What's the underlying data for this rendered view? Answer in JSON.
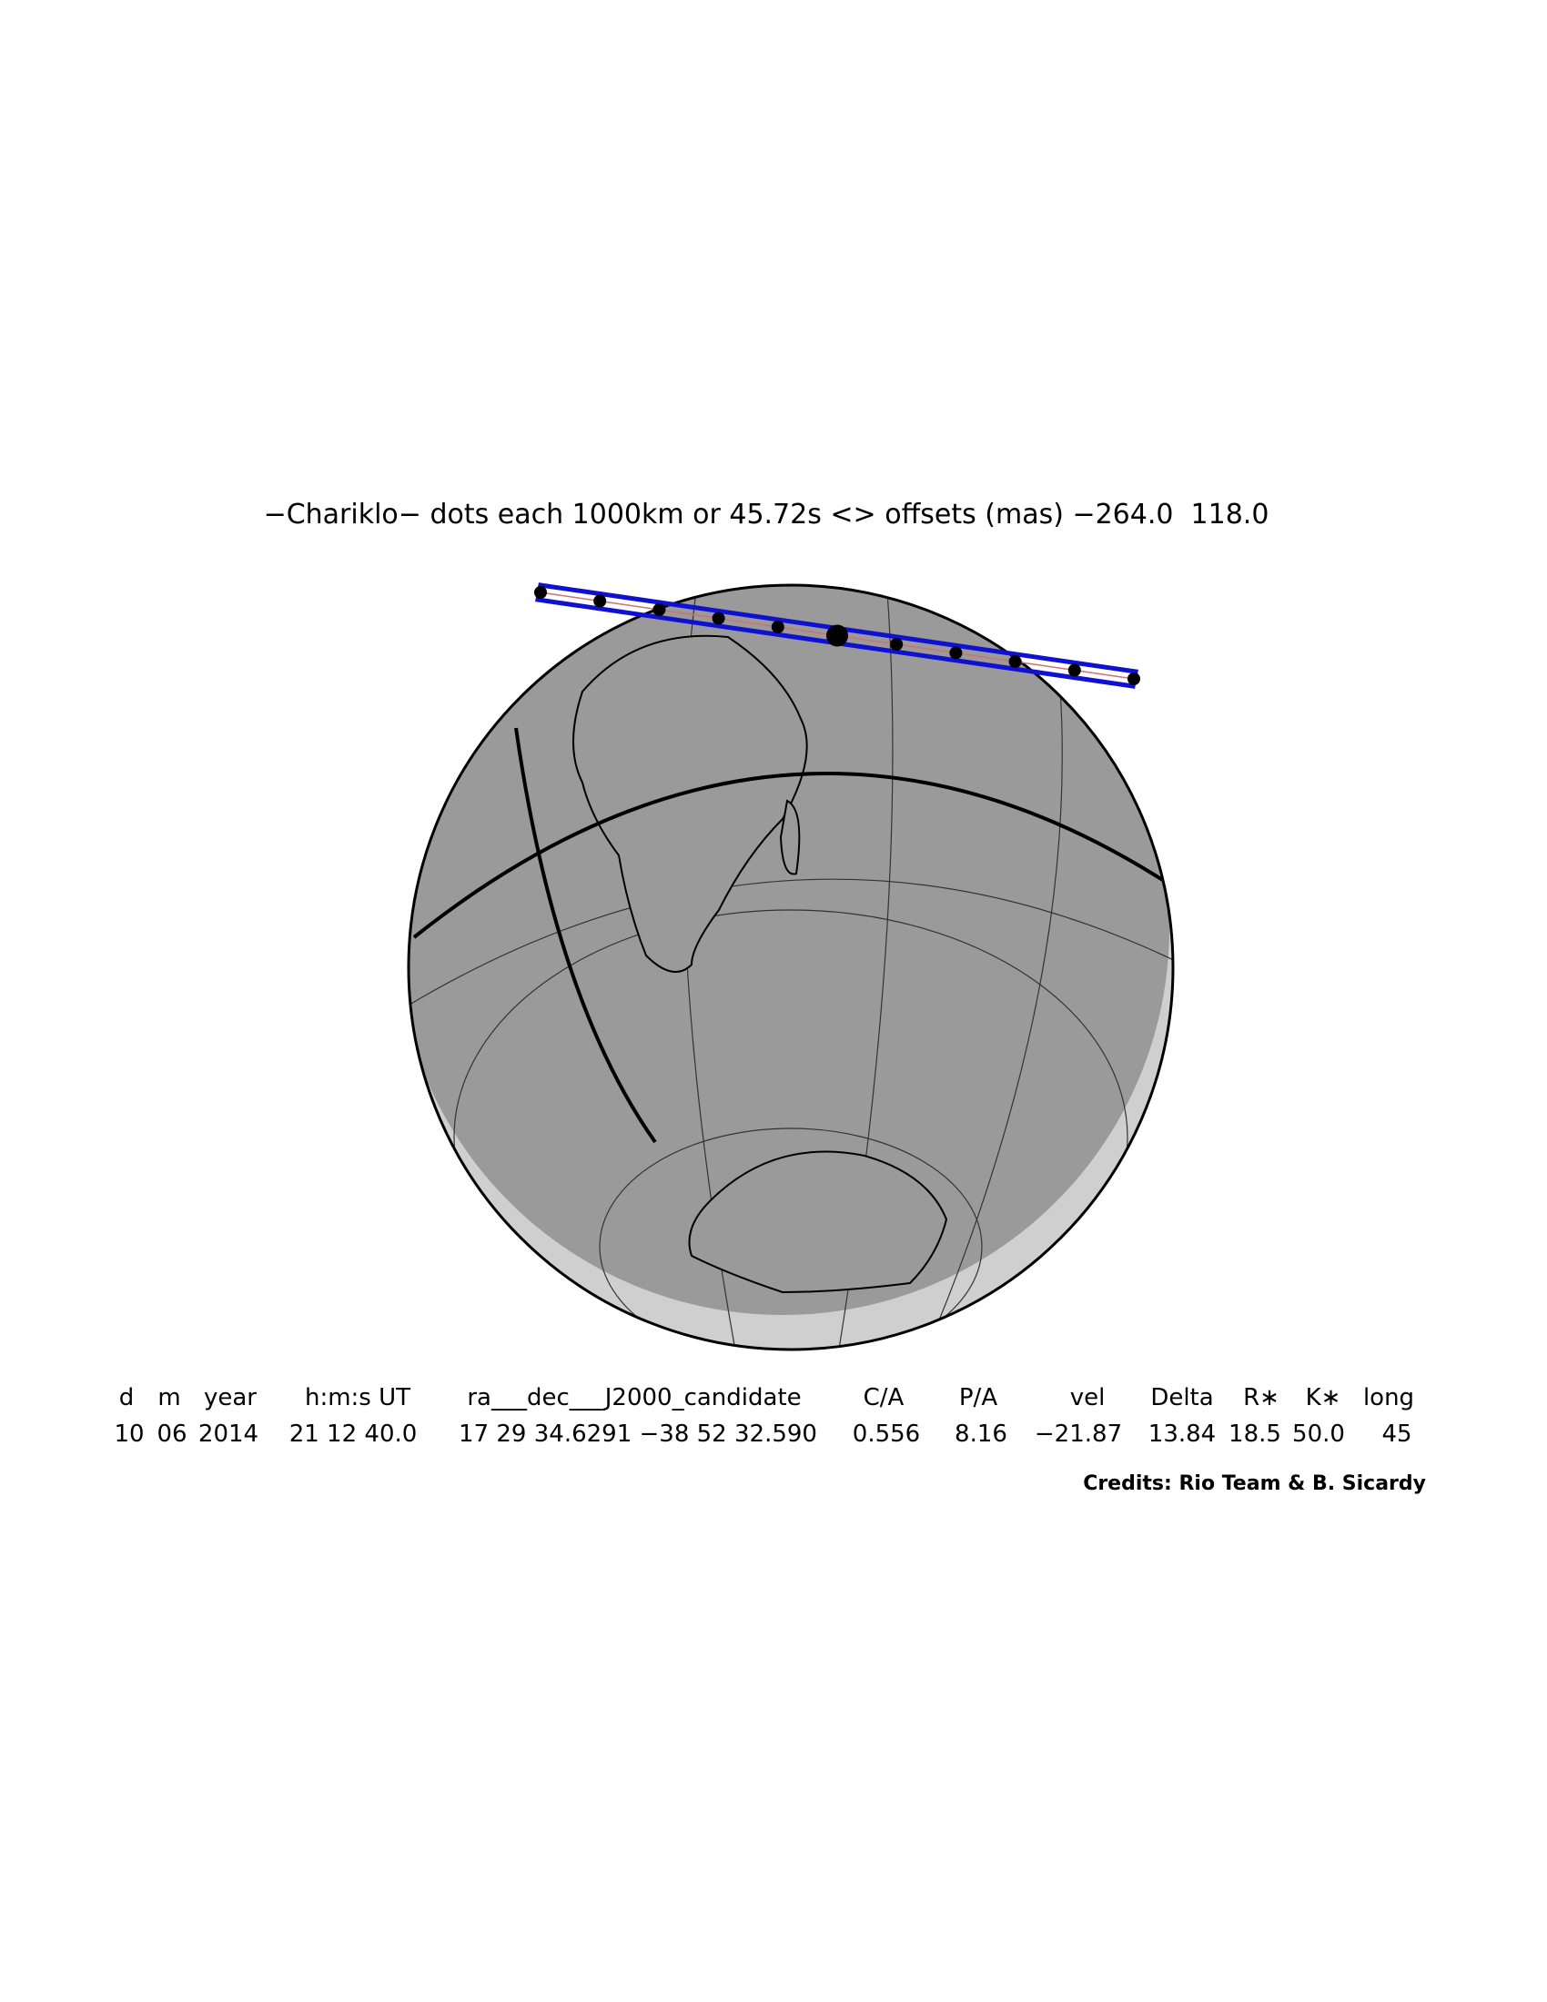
{
  "title": "−Chariklo− dots each 1000km or 45.72s <> offsets (mas) −264.0  118.0",
  "table": {
    "headers": [
      "d",
      "m",
      "year",
      "h:m:s UT",
      "ra___dec___J2000_candidate",
      "C/A",
      "P/A",
      "vel",
      "Delta",
      "R∗",
      "K∗",
      "long"
    ],
    "values": [
      "10",
      "06",
      "2014",
      "21 12 40.0",
      "17 29 34.6291 −38 52 32.590",
      "0.556",
      "8.16",
      "−21.87",
      "13.84",
      "18.5",
      "50.0",
      "45"
    ]
  },
  "credits": "Credits: Rio Team & B. Sicardy"
}
